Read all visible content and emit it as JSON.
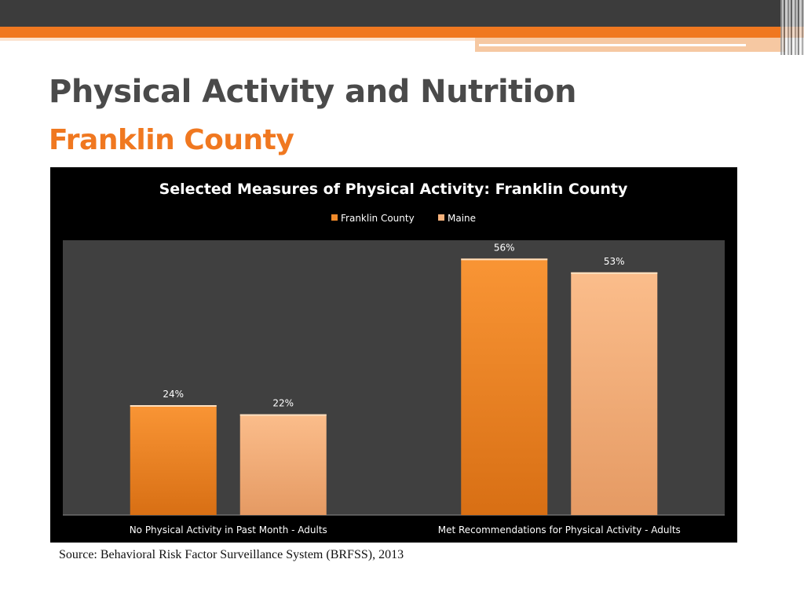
{
  "slide": {
    "title": "Physical Activity and Nutrition",
    "subtitle": "Franklin County",
    "source": "Source: Behavioral Risk Factor Surveillance System (BRFSS), 2013"
  },
  "colors": {
    "accent": "#f07820",
    "title_text": "#4a4a4a",
    "franklin_county": "#f08a2a",
    "maine": "#f7b27c",
    "plot_background": "#404040",
    "chart_background": "#000000"
  },
  "chart_data": {
    "type": "bar",
    "title": "Selected Measures of Physical Activity: Franklin County",
    "categories": [
      "No Physical Activity in Past Month - Adults",
      "Met Recommendations for Physical Activity - Adults"
    ],
    "series": [
      {
        "name": "Franklin County",
        "values": [
          24,
          56
        ],
        "labels": [
          "24%",
          "56%"
        ]
      },
      {
        "name": "Maine",
        "values": [
          22,
          53
        ],
        "labels": [
          "22%",
          "53%"
        ]
      }
    ],
    "ylim": [
      0,
      60
    ],
    "value_unit": "%",
    "legend_position": "top-center",
    "grid": false
  }
}
